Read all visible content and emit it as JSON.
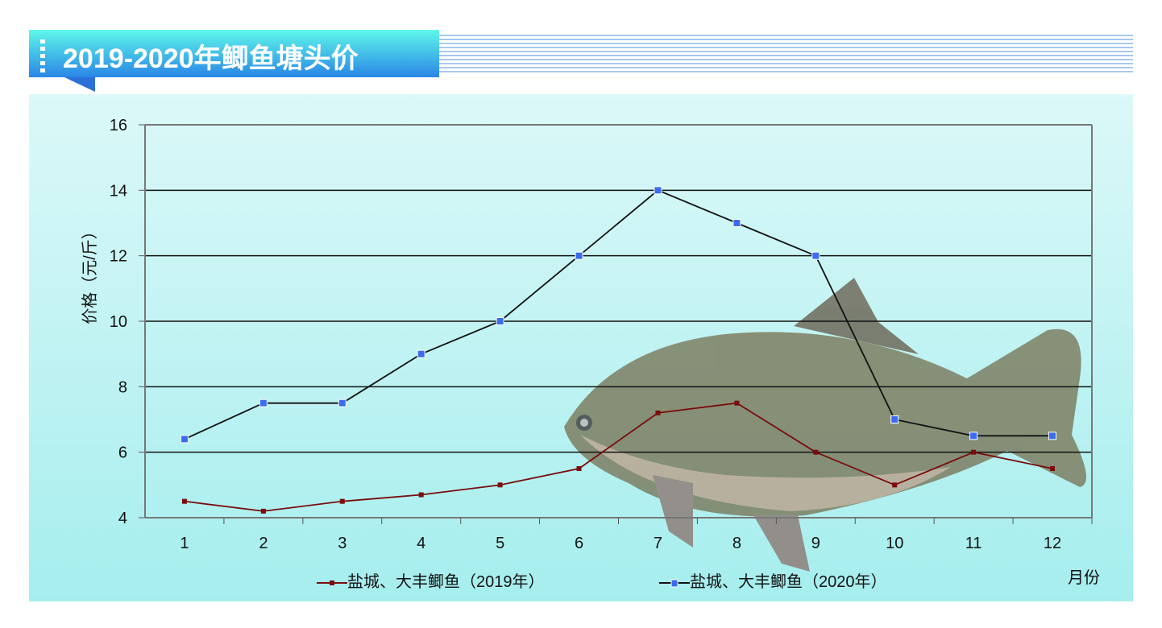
{
  "title": "2019-2020年鲫鱼塘头价",
  "chart_data": {
    "type": "line",
    "title": "2019-2020年鲫鱼塘头价",
    "xlabel": "月份",
    "ylabel": "价格（元/斤）",
    "categories": [
      "1",
      "2",
      "3",
      "4",
      "5",
      "6",
      "7",
      "8",
      "9",
      "10",
      "11",
      "12"
    ],
    "ylim": [
      4,
      16
    ],
    "yticks": [
      4,
      6,
      8,
      10,
      12,
      14,
      16
    ],
    "grid": true,
    "legend": "bottom",
    "series": [
      {
        "name": "盐城、大丰鲫鱼（2019年）",
        "color": "#7a0c0c",
        "values": [
          4.5,
          4.2,
          4.5,
          4.7,
          5.0,
          5.5,
          7.2,
          7.5,
          6.0,
          5.0,
          6.0,
          5.5
        ]
      },
      {
        "name": "盐城、大丰鲫鱼（2020年）",
        "color": "#3a6cf0",
        "line_color": "#111111",
        "values": [
          6.4,
          7.5,
          7.5,
          9.0,
          10.0,
          12.0,
          14.0,
          13.0,
          12.0,
          7.0,
          6.5,
          6.5
        ]
      }
    ]
  }
}
